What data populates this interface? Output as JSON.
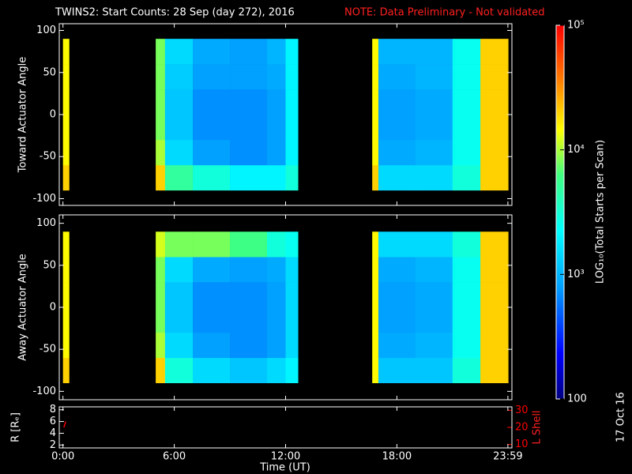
{
  "chart_data": [
    {
      "type": "heatmap",
      "title": "TWINS2: Start Counts: 28 Sep (day 272), 2016",
      "note": "NOTE: Data Preliminary - Not validated",
      "ylabel": "Toward Actuator Angle",
      "xlim": [
        -0.2,
        24.2
      ],
      "ylim": [
        -108,
        108
      ],
      "yticks": [
        -100,
        -50,
        0,
        50,
        100
      ],
      "x_bins": [
        0,
        0.33,
        5,
        5.5,
        7,
        9,
        11,
        12,
        12.67,
        16.67,
        17,
        19,
        21,
        22.5,
        24
      ],
      "y_bins": [
        -90,
        -60,
        -30,
        30,
        60,
        90
      ],
      "values": [
        [
          20000,
          null,
          20000,
          5000,
          3000,
          2000,
          2000,
          3000,
          null,
          20000,
          1500,
          1500,
          3000,
          20000
        ],
        [
          15000,
          null,
          10000,
          1500,
          800,
          700,
          800,
          2000,
          null,
          15000,
          900,
          1000,
          2500,
          20000
        ],
        [
          15000,
          null,
          8000,
          1200,
          700,
          700,
          800,
          2000,
          null,
          15000,
          800,
          900,
          2500,
          20000
        ],
        [
          15000,
          null,
          8000,
          1300,
          800,
          800,
          900,
          2000,
          null,
          15000,
          900,
          1000,
          2500,
          20000
        ],
        [
          15000,
          null,
          8000,
          1500,
          900,
          800,
          1000,
          2000,
          null,
          15000,
          1000,
          1000,
          2500,
          20000
        ]
      ],
      "colormap": "rainbow",
      "zscale": "log",
      "zlim": [
        100,
        100000
      ],
      "zticks": [
        100,
        {
          "value": 1000,
          "label": "10³"
        },
        {
          "value": 10000,
          "label": "10⁴"
        },
        {
          "value": 100000,
          "label": "10⁵"
        }
      ],
      "zlabel": "LOG₁₀(Total Starts per Scan)"
    },
    {
      "type": "heatmap",
      "ylabel": "Away Actuator Angle",
      "xlim": [
        -0.2,
        24.2
      ],
      "ylim": [
        -110,
        110
      ],
      "yticks": [
        -100,
        -50,
        0,
        50,
        100
      ],
      "x_bins": [
        0,
        0.33,
        5,
        5.5,
        7,
        9,
        11,
        12,
        12.67,
        16.67,
        17,
        19,
        21,
        22.5,
        24
      ],
      "y_bins": [
        -90,
        -60,
        -30,
        30,
        60,
        90
      ],
      "values": [
        [
          20000,
          null,
          20000,
          3000,
          1500,
          1200,
          1500,
          2000,
          null,
          15000,
          1200,
          1200,
          3000,
          20000
        ],
        [
          15000,
          null,
          10000,
          1500,
          800,
          700,
          800,
          1500,
          null,
          15000,
          900,
          1000,
          2500,
          20000
        ],
        [
          15000,
          null,
          8000,
          1200,
          700,
          700,
          800,
          1500,
          null,
          15000,
          800,
          900,
          2500,
          20000
        ],
        [
          15000,
          null,
          8000,
          1500,
          900,
          800,
          900,
          1500,
          null,
          15000,
          900,
          1000,
          2500,
          20000
        ],
        [
          15000,
          null,
          12000,
          8000,
          8000,
          6000,
          3000,
          2500,
          null,
          15000,
          1500,
          1500,
          3000,
          20000
        ]
      ]
    },
    {
      "type": "line",
      "xlabel": "Time (UT)",
      "xlim": [
        -0.2,
        24.2
      ],
      "xticks": [
        {
          "value": 0,
          "label": "0:00"
        },
        {
          "value": 6,
          "label": "6:00"
        },
        {
          "value": 12,
          "label": "12:00"
        },
        {
          "value": 18,
          "label": "18:00"
        },
        {
          "value": 23.983,
          "label": "23:59"
        }
      ],
      "ylabel": "R [Rₑ]",
      "ylim": [
        1.5,
        8.5
      ],
      "yticks": [
        2,
        4,
        6,
        8
      ],
      "y2label": "L Shell",
      "y2color": "red",
      "y2lim": [
        8,
        32
      ],
      "y2ticks": [
        10,
        20,
        30
      ],
      "series": [
        {
          "color": "red",
          "x": [
            0.05,
            0.15
          ],
          "values": [
            5,
            6
          ]
        }
      ]
    }
  ],
  "stamp": "17 Oct 16"
}
